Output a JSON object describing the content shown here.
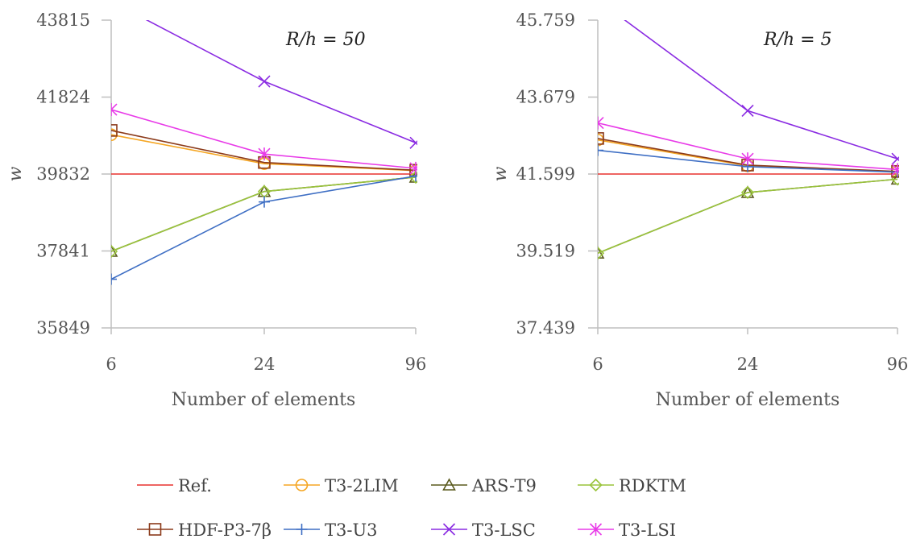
{
  "chart_data": [
    {
      "type": "line",
      "annotation": "R/h = 50",
      "xlabel": "Number of elements",
      "ylabel": "w",
      "categories": [
        "6",
        "24",
        "96"
      ],
      "yticks": [
        "35849",
        "37841",
        "39832",
        "41824",
        "43815"
      ],
      "ylim": [
        35849,
        43815
      ],
      "grid": false,
      "series": [
        {
          "name": "Ref.",
          "values": [
            39832,
            39832,
            39832
          ]
        },
        {
          "name": "T3-2LIM",
          "values": [
            40850,
            40100,
            39920
          ]
        },
        {
          "name": "ARS-T9",
          "values": [
            37830,
            39380,
            39750
          ]
        },
        {
          "name": "RDKTM",
          "values": [
            37830,
            39380,
            39750
          ]
        },
        {
          "name": "HDF-P3-7β",
          "values": [
            40960,
            40130,
            39930
          ]
        },
        {
          "name": "T3-U3",
          "values": [
            37110,
            39110,
            39780
          ]
        },
        {
          "name": "T3-LSC",
          "values": [
            44300,
            42230,
            40640
          ]
        },
        {
          "name": "T3-LSI",
          "values": [
            41500,
            40350,
            39980
          ]
        }
      ]
    },
    {
      "type": "line",
      "annotation": "R/h = 5",
      "xlabel": "Number of elements",
      "ylabel": "w",
      "categories": [
        "6",
        "24",
        "96"
      ],
      "yticks": [
        "37.439",
        "39.519",
        "41.599",
        "43.679",
        "45.759"
      ],
      "ylim": [
        37.439,
        45.759
      ],
      "grid": false,
      "series": [
        {
          "name": "Ref.",
          "values": [
            41.599,
            41.599,
            41.599
          ]
        },
        {
          "name": "T3-2LIM",
          "values": [
            42.52,
            41.82,
            41.66
          ]
        },
        {
          "name": "ARS-T9",
          "values": [
            39.46,
            41.1,
            41.46
          ]
        },
        {
          "name": "RDKTM",
          "values": [
            39.46,
            41.1,
            41.46
          ]
        },
        {
          "name": "HDF-P3-7β",
          "values": [
            42.56,
            41.84,
            41.67
          ]
        },
        {
          "name": "T3-U3",
          "values": [
            42.24,
            41.8,
            41.65
          ]
        },
        {
          "name": "T3-LSC",
          "values": [
            46.3,
            43.31,
            42.01
          ]
        },
        {
          "name": "T3-LSI",
          "values": [
            42.98,
            42.01,
            41.72
          ]
        }
      ]
    }
  ],
  "legend": [
    {
      "name": "Ref.",
      "color": "#e8322f",
      "marker": "none"
    },
    {
      "name": "T3-2LIM",
      "color": "#f5a623",
      "marker": "circle"
    },
    {
      "name": "ARS-T9",
      "color": "#5a5a1e",
      "marker": "triangle"
    },
    {
      "name": "RDKTM",
      "color": "#9ac43c",
      "marker": "diamond"
    },
    {
      "name": "HDF-P3-7β",
      "color": "#8b3a1a",
      "marker": "square"
    },
    {
      "name": "T3-U3",
      "color": "#3f6fc4",
      "marker": "plus"
    },
    {
      "name": "T3-LSC",
      "color": "#8a2be2",
      "marker": "x"
    },
    {
      "name": "T3-LSI",
      "color": "#e83be8",
      "marker": "star"
    }
  ],
  "axis_color": "#bfbfbf"
}
